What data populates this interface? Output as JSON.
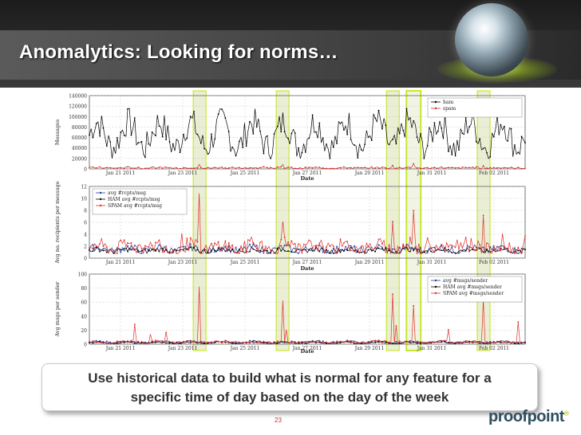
{
  "slide": {
    "title": "Anomalytics: Looking for norms…",
    "caption_line1": "Use historical data to build what is normal for any feature for a",
    "caption_line2": "specific time of day based on the day of the week",
    "page_number": "23",
    "logo_text": "proofpoint",
    "logo_mark": "®"
  },
  "colors": {
    "ham": "#000000",
    "spam": "#e0302a",
    "avg": "#2a3aa0",
    "highlight_fill": "#d8e0b0",
    "highlight_stroke": "#c8e830"
  },
  "highlights": [
    {
      "date": "Jan 23 2011 13:00",
      "strong": false
    },
    {
      "date": "Jan 26 2011 05:00",
      "strong": false
    },
    {
      "date": "Jan 29 2011 18:00",
      "strong": false
    },
    {
      "date": "Jan 30 2011 10:00",
      "strong": true
    },
    {
      "date": "Feb 01 2011 16:00",
      "strong": false
    }
  ],
  "chart_data": [
    {
      "type": "line",
      "xlabel": "Date",
      "ylabel": "Messages",
      "ylim": [
        0,
        140000
      ],
      "yticks": [
        "0",
        "20000",
        "40000",
        "60000",
        "80000",
        "100000",
        "120000",
        "140000"
      ],
      "xlim": [
        "Jan 20 2011",
        "Feb 03 2011"
      ],
      "xticks": [
        "Jan 21 2011",
        "Jan 23 2011",
        "Jan 25 2011",
        "Jan 27 2011",
        "Jan 29 2011",
        "Jan 31 2011",
        "Feb 02 2011"
      ],
      "grid": true,
      "legend": "top-right",
      "series": [
        {
          "name": "ham",
          "color": "#000000",
          "base": 65000,
          "amp": 25000,
          "noise": 28000,
          "min": 20000,
          "max": 128000
        },
        {
          "name": "spam",
          "color": "#e0302a",
          "base": 2000,
          "amp": 500,
          "noise": 1500,
          "min": 0,
          "max": 10000
        }
      ]
    },
    {
      "type": "line",
      "xlabel": "Date",
      "ylabel": "Avg no. recipients per message",
      "ylim": [
        0,
        12
      ],
      "yticks": [
        "0",
        "2",
        "4",
        "6",
        "8",
        "10",
        "12"
      ],
      "xlim": [
        "Jan 20 2011",
        "Feb 03 2011"
      ],
      "xticks": [
        "Jan 21 2011",
        "Jan 23 2011",
        "Jan 25 2011",
        "Jan 27 2011",
        "Jan 29 2011",
        "Jan 31 2011",
        "Feb 02 2011"
      ],
      "grid": true,
      "legend": "top-left",
      "series": [
        {
          "name": "avg #rcpts/msg",
          "color": "#2a3aa0",
          "base": 1.5,
          "amp": 0.3,
          "noise": 0.6,
          "min": 0.8,
          "max": 3
        },
        {
          "name": "HAM avg #rcpts/msg",
          "color": "#000000",
          "base": 1.3,
          "amp": 0.2,
          "noise": 0.4,
          "min": 0.8,
          "max": 2.5
        },
        {
          "name": "SPAM avg #rcpts/msg",
          "color": "#e0302a",
          "base": 1.8,
          "amp": 0.5,
          "noise": 1.2,
          "min": 0.8,
          "max": 11
        }
      ]
    },
    {
      "type": "line",
      "xlabel": "Date",
      "ylabel": "Avg msgs per sender",
      "ylim": [
        0,
        100
      ],
      "yticks": [
        "0",
        "20",
        "40",
        "60",
        "80",
        "100"
      ],
      "xlim": [
        "Jan 20 2011",
        "Feb 03 2011"
      ],
      "xticks": [
        "Jan 21 2011",
        "Jan 23 2011",
        "Jan 25 2011",
        "Jan 27 2011",
        "Jan 29 2011",
        "Jan 31 2011",
        "Feb 02 2011"
      ],
      "grid": true,
      "legend": "top-right",
      "series": [
        {
          "name": "avg #msgs/sender",
          "color": "#2a3aa0",
          "base": 3,
          "amp": 1,
          "noise": 1.5,
          "min": 1,
          "max": 10
        },
        {
          "name": "HAM avg #msgs/sender",
          "color": "#000000",
          "base": 2,
          "amp": 1,
          "noise": 1,
          "min": 1,
          "max": 8
        },
        {
          "name": "SPAM avg #msgs/sender",
          "color": "#e0302a",
          "base": 3,
          "amp": 1,
          "noise": 2,
          "min": 1,
          "max": 92
        }
      ]
    }
  ]
}
